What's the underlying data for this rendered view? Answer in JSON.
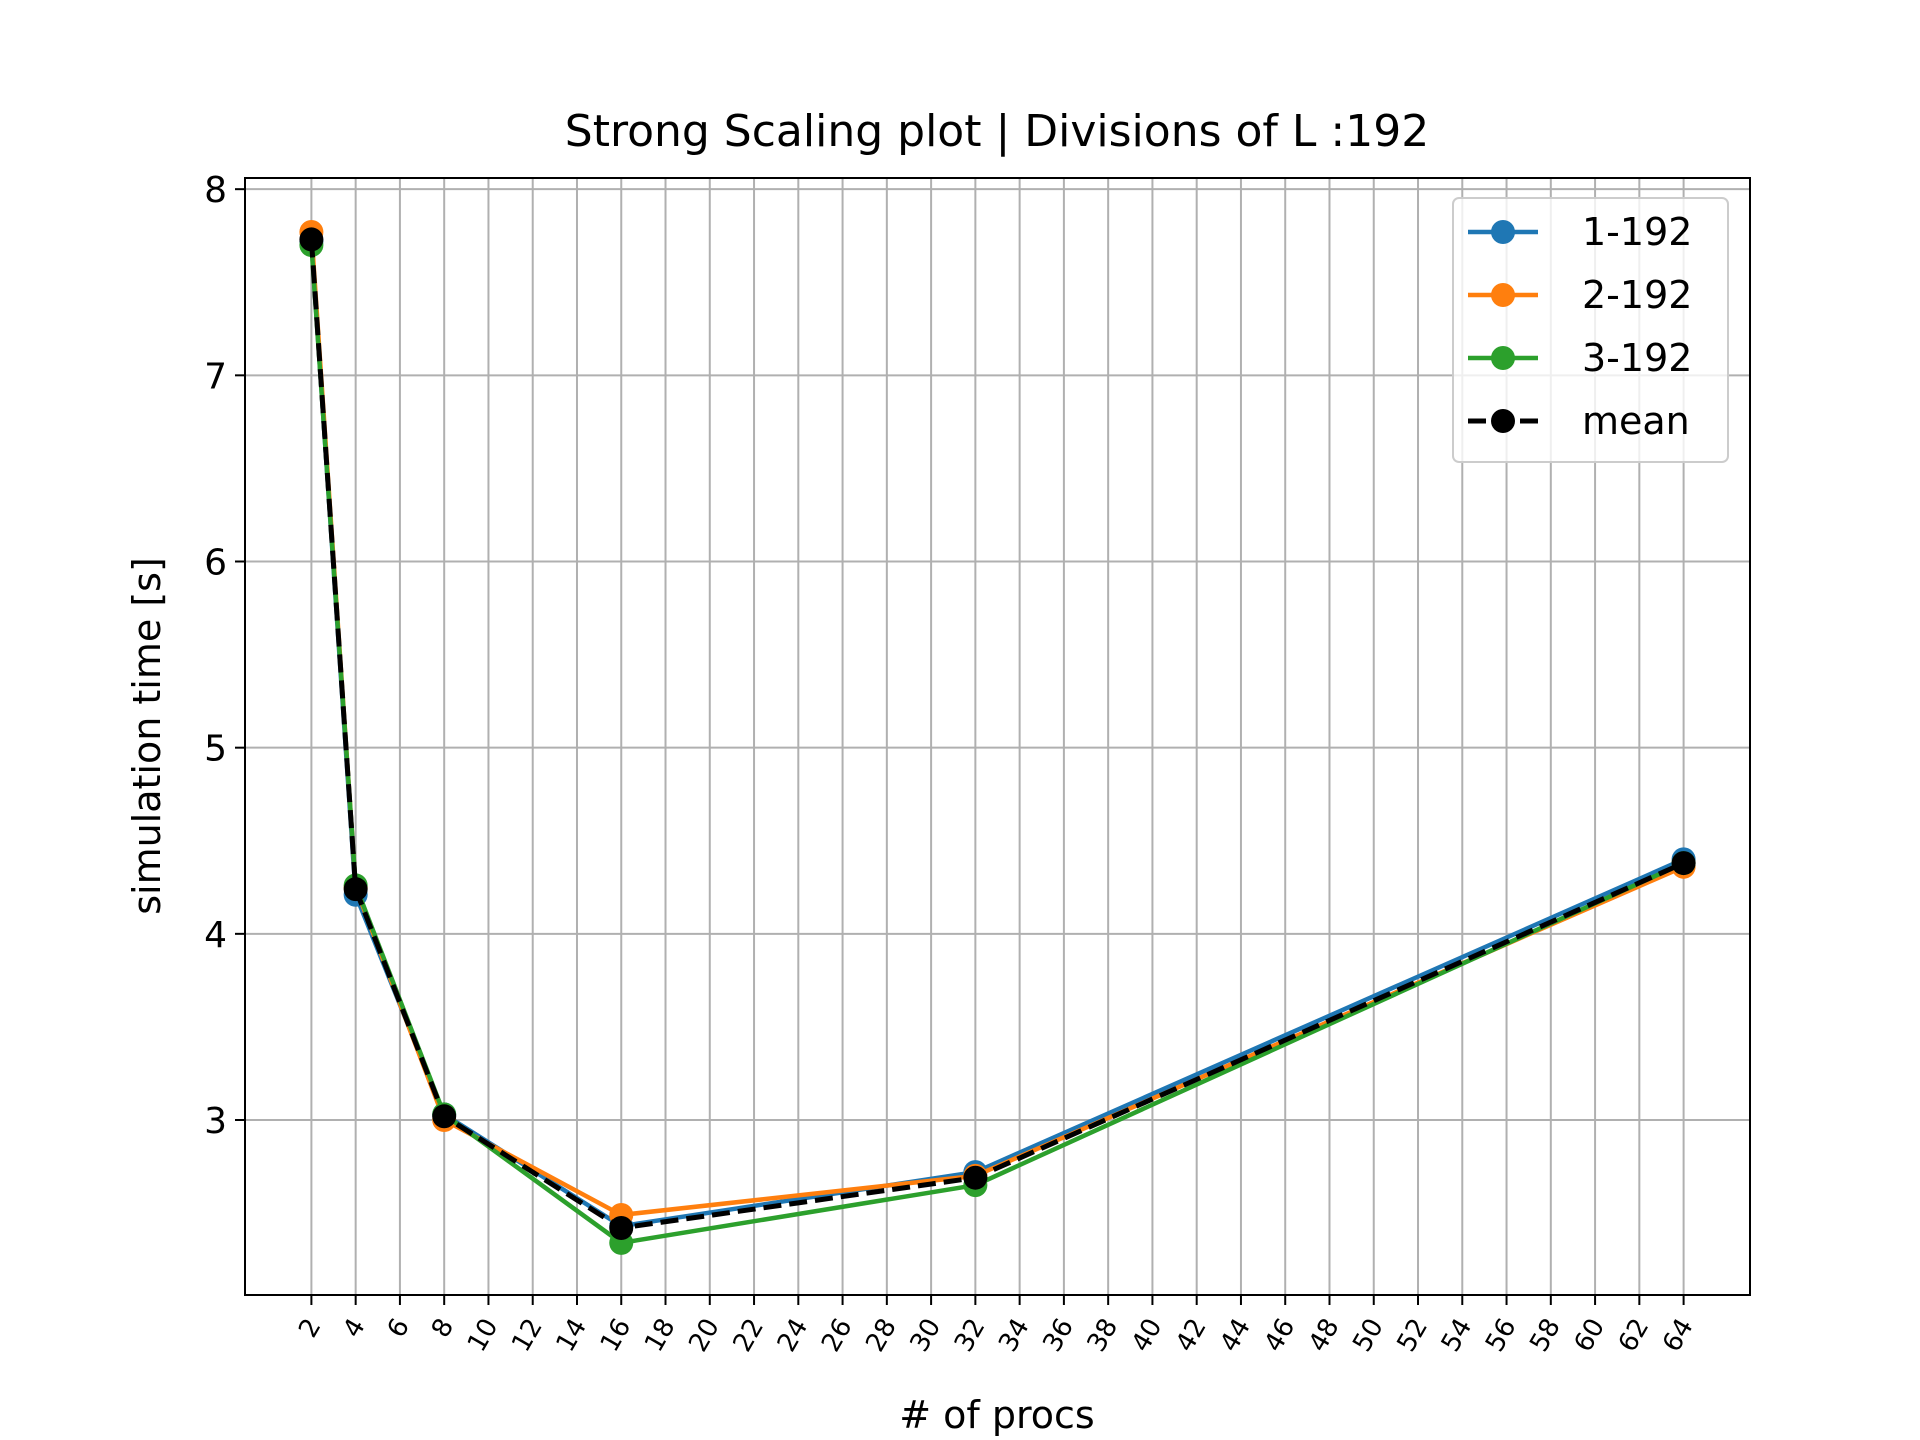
{
  "chart_data": {
    "type": "line",
    "title": "Strong Scaling plot | Divisions of L :192",
    "xlabel": "# of procs",
    "ylabel": "simulation time [s]",
    "xlim": [
      -1,
      67
    ],
    "ylim": [
      2.06,
      8.06
    ],
    "grid": true,
    "legend_position": "top-right",
    "x": [
      2,
      4,
      8,
      16,
      32,
      64
    ],
    "x_ticks": [
      2,
      4,
      6,
      8,
      10,
      12,
      14,
      16,
      18,
      20,
      22,
      24,
      26,
      28,
      30,
      32,
      34,
      36,
      38,
      40,
      42,
      44,
      46,
      48,
      50,
      52,
      54,
      56,
      58,
      60,
      62,
      64
    ],
    "y_ticks": [
      3,
      4,
      5,
      6,
      7,
      8
    ],
    "series": [
      {
        "name": "1-192",
        "color": "#1f77b4",
        "dashed": false,
        "values": [
          7.72,
          4.21,
          3.03,
          2.43,
          2.72,
          4.4
        ]
      },
      {
        "name": "2-192",
        "color": "#ff7f0e",
        "dashed": false,
        "values": [
          7.77,
          4.25,
          3.0,
          2.49,
          2.7,
          4.36
        ]
      },
      {
        "name": "3-192",
        "color": "#2ca02c",
        "dashed": false,
        "values": [
          7.7,
          4.26,
          3.03,
          2.34,
          2.65,
          4.38
        ]
      },
      {
        "name": "mean",
        "color": "#000000",
        "dashed": true,
        "values": [
          7.73,
          4.24,
          3.02,
          2.42,
          2.69,
          4.38
        ]
      }
    ]
  }
}
